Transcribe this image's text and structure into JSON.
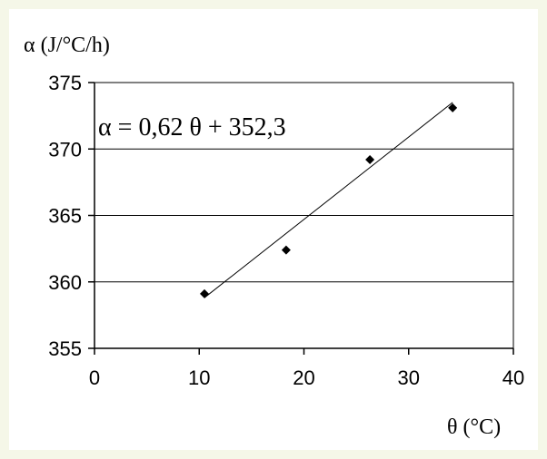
{
  "chart_data": {
    "type": "scatter",
    "ylabel": "α (J/°C/h)",
    "xlabel": "θ (°C)",
    "equation": "α = 0,62 θ + 352,3",
    "xlim": [
      0,
      40
    ],
    "ylim": [
      355,
      375
    ],
    "x_ticks": [
      0,
      10,
      20,
      30,
      40
    ],
    "y_ticks": [
      355,
      360,
      365,
      370,
      375
    ],
    "grid": "horizontal",
    "points": [
      {
        "x": 10.5,
        "y": 359.1
      },
      {
        "x": 18.3,
        "y": 362.4
      },
      {
        "x": 26.3,
        "y": 369.2
      },
      {
        "x": 34.2,
        "y": 373.1
      }
    ],
    "trendline": {
      "slope": 0.62,
      "intercept": 352.3,
      "x_start": 10.5,
      "x_end": 34.2
    },
    "colors": {
      "background": "#f5f7e8",
      "plot": "#ffffff",
      "marker": "#000000",
      "line": "#000000"
    }
  }
}
